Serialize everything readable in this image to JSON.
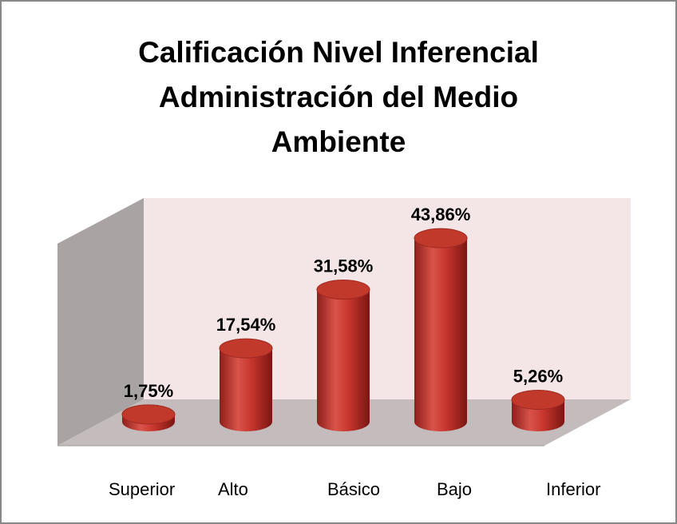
{
  "chart_data": {
    "type": "bar3d",
    "title": "Calificación Nivel Inferencial Administración del Medio Ambiente",
    "categories": [
      "Superior",
      "Alto",
      "Básico",
      "Bajo",
      "Inferior"
    ],
    "values": [
      1.75,
      17.54,
      31.58,
      43.86,
      5.26
    ],
    "value_labels": [
      "1,75%",
      "17,54%",
      "31,58%",
      "43,86%",
      "5,26%"
    ],
    "color": "#c0392b"
  }
}
